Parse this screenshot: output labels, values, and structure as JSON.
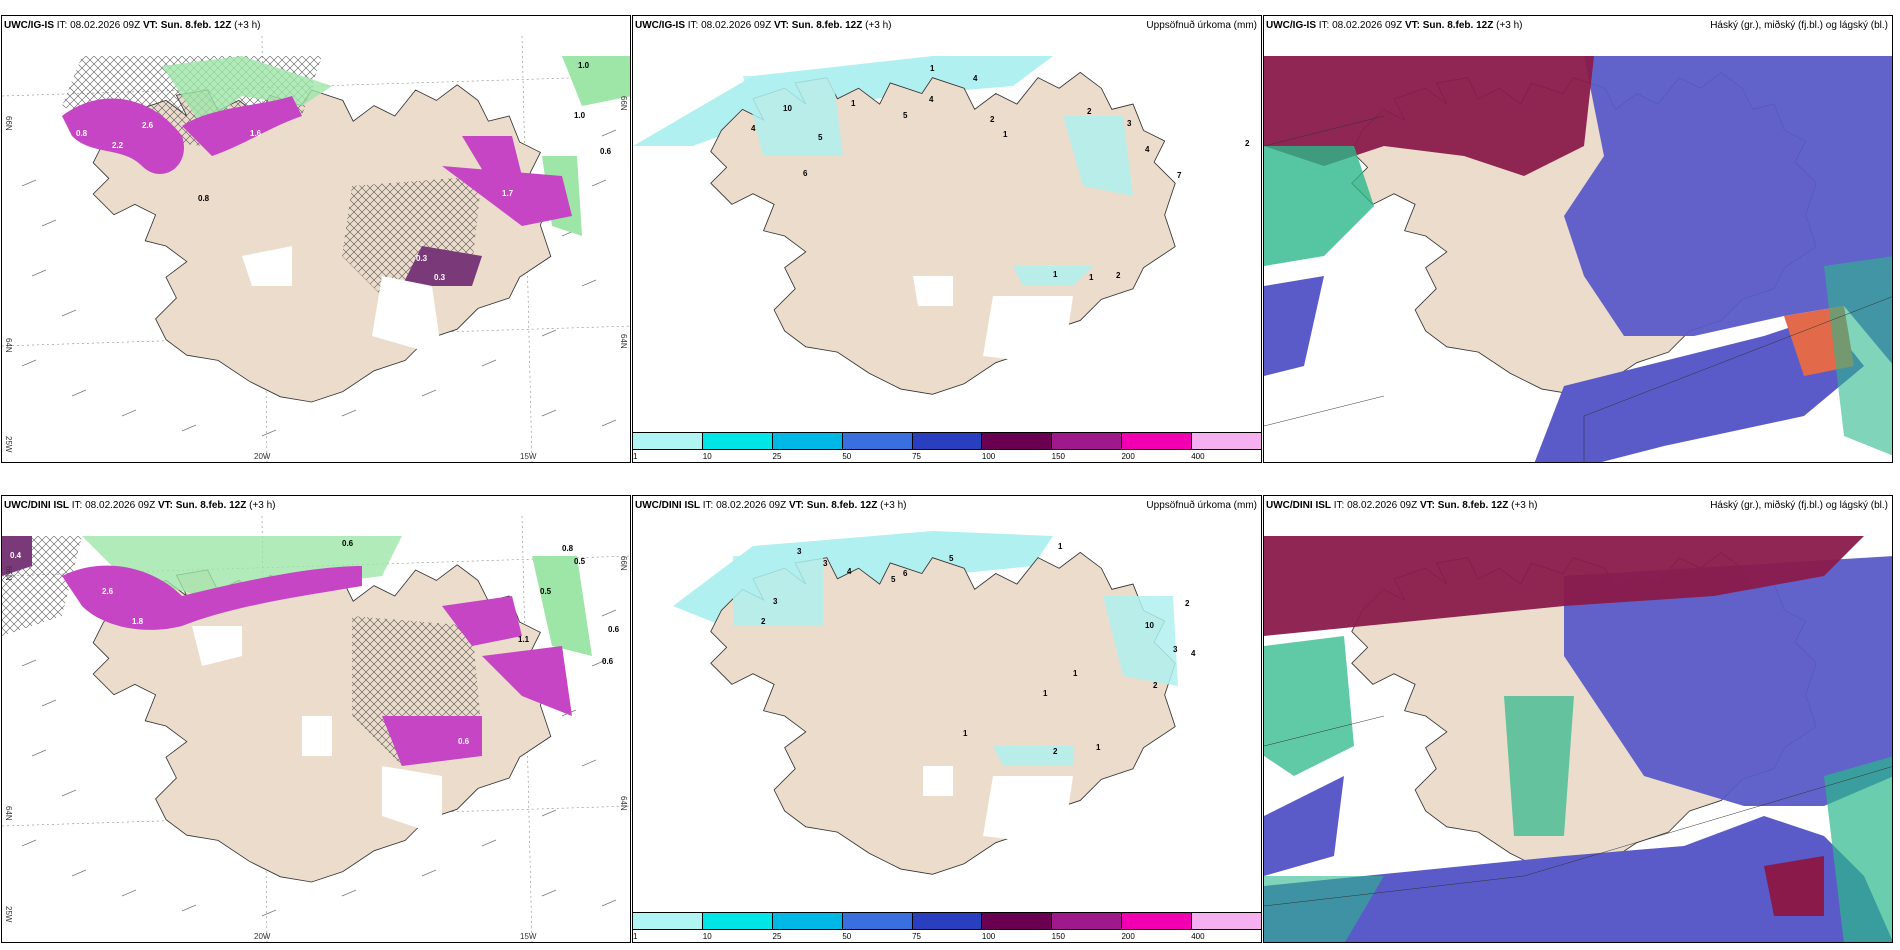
{
  "panels": {
    "top_left": {
      "model": "UWC/IG-IS",
      "it_label": "IT:",
      "it": "08.02.2026 09Z",
      "vt_label": "VT:",
      "vt": "Sun. 8.feb. 12Z",
      "lead": "(+3 h)"
    },
    "top_mid": {
      "model": "UWC/IG-IS",
      "it_label": "IT:",
      "it": "08.02.2026 09Z",
      "vt_label": "VT:",
      "vt": "Sun. 8.feb. 12Z",
      "lead": "(+3 h)",
      "right_title": "Uppsöfnuð úrkoma (mm)"
    },
    "top_right": {
      "model": "UWC/IG-IS",
      "it_label": "IT:",
      "it": "08.02.2026 09Z",
      "vt_label": "VT:",
      "vt": "Sun. 8.feb. 12Z",
      "lead": "(+3 h)",
      "right_title": "Háský (gr.), miðský (fj.bl.) og lágský (bl.)"
    },
    "bot_left": {
      "model": "UWC/DINI ISL",
      "it_label": "IT:",
      "it": "08.02.2026 09Z",
      "vt_label": "VT:",
      "vt": "Sun. 8.feb. 12Z",
      "lead": "(+3 h)"
    },
    "bot_mid": {
      "model": "UWC/DINI ISL",
      "it_label": "IT:",
      "it": "08.02.2026 09Z",
      "vt_label": "VT:",
      "vt": "Sun. 8.feb. 12Z",
      "lead": "(+3 h)",
      "right_title": "Uppsöfnuð úrkoma (mm)"
    },
    "bot_right": {
      "model": "UWC/DINI ISL",
      "it_label": "IT:",
      "it": "08.02.2026 09Z",
      "vt_label": "VT:",
      "vt": "Sun. 8.feb. 12Z",
      "lead": "(+3 h)",
      "right_title": "Háský (gr.), miðský (fj.bl.) og lágský (bl.)"
    }
  },
  "axes": {
    "top": {
      "lon_20": "20W",
      "lon_15": "15W",
      "lat_66_left": "66N",
      "lat_66_right": "66N",
      "lat_64_left": "64N",
      "lat_64_right": "64N",
      "lon_25": "25W"
    },
    "bot": {
      "lon_20": "20W",
      "lon_15": "15W",
      "lat_66_left": "66N",
      "lat_66_right": "66N",
      "lat_64_left": "64N",
      "lat_64_right": "64N",
      "lon_25": "25W"
    }
  },
  "colorbar": {
    "ticks": [
      "1",
      "10",
      "25",
      "50",
      "75",
      "100",
      "150",
      "200",
      "400"
    ],
    "colors": [
      "#b0f4f4",
      "#00e6e6",
      "#00b8e6",
      "#3a6fe0",
      "#2a3fc0",
      "#6a0050",
      "#9e1a8a",
      "#f000b0",
      "#f5b0f0"
    ]
  },
  "labels": {
    "top_left": {
      "a": "0.8",
      "b": "2.2",
      "c": "2.6",
      "d": "1.6",
      "e": "0.8",
      "f": "1.0",
      "g": "0.6",
      "h": "1.0",
      "i": "0.3",
      "j": "0.3",
      "k": "1.7"
    },
    "top_mid": {
      "a": "1",
      "b": "4",
      "c": "10",
      "d": "4",
      "e": "5",
      "f": "6",
      "g": "1",
      "h": "5",
      "i": "4",
      "j": "2",
      "k": "1",
      "l": "2",
      "m": "3",
      "n": "4",
      "o": "7",
      "p": "2",
      "q": "1",
      "r": "1",
      "s": "2"
    },
    "bot_left": {
      "a": "0.4",
      "b": "2.6",
      "c": "1.8",
      "d": "0.6",
      "e": "0.8",
      "f": "0.5",
      "g": "0.5",
      "h": "0.6",
      "i": "0.6",
      "j": "1.1",
      "k": "0.6"
    },
    "bot_mid": {
      "a": "3",
      "b": "3",
      "c": "4",
      "d": "5",
      "e": "6",
      "f": "5",
      "g": "1",
      "h": "2",
      "i": "3",
      "j": "2",
      "k": "10",
      "l": "3",
      "m": "4",
      "n": "1",
      "o": "2",
      "p": "1",
      "q": "1",
      "r": "2",
      "s": "1"
    }
  },
  "colors": {
    "land": "#ecdccb",
    "precip_magenta": "#c545c5",
    "precip_dark": "#7a3a7a",
    "green": "#9ee6a8",
    "cyan": "#b0f0f0",
    "cloud_high": "#8a1a4a",
    "cloud_mid": "#5a5ac8",
    "cloud_low": "#2bb88a"
  }
}
